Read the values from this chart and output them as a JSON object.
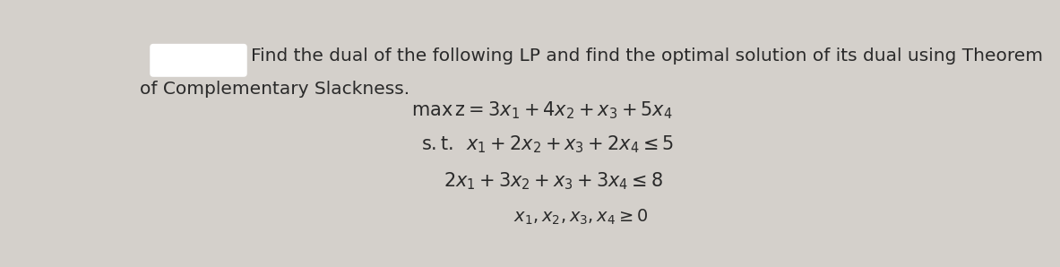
{
  "bg_color": "#d4d0cb",
  "text_color": "#2a2a2a",
  "header_text_line1": "Find the dual of the following LP and find the optimal solution of its dual using Theorem",
  "header_text_line2": "of Complementary Slackness.",
  "rect_color": "#ffffff",
  "font_size_header": 14.5,
  "font_size_math": 15
}
